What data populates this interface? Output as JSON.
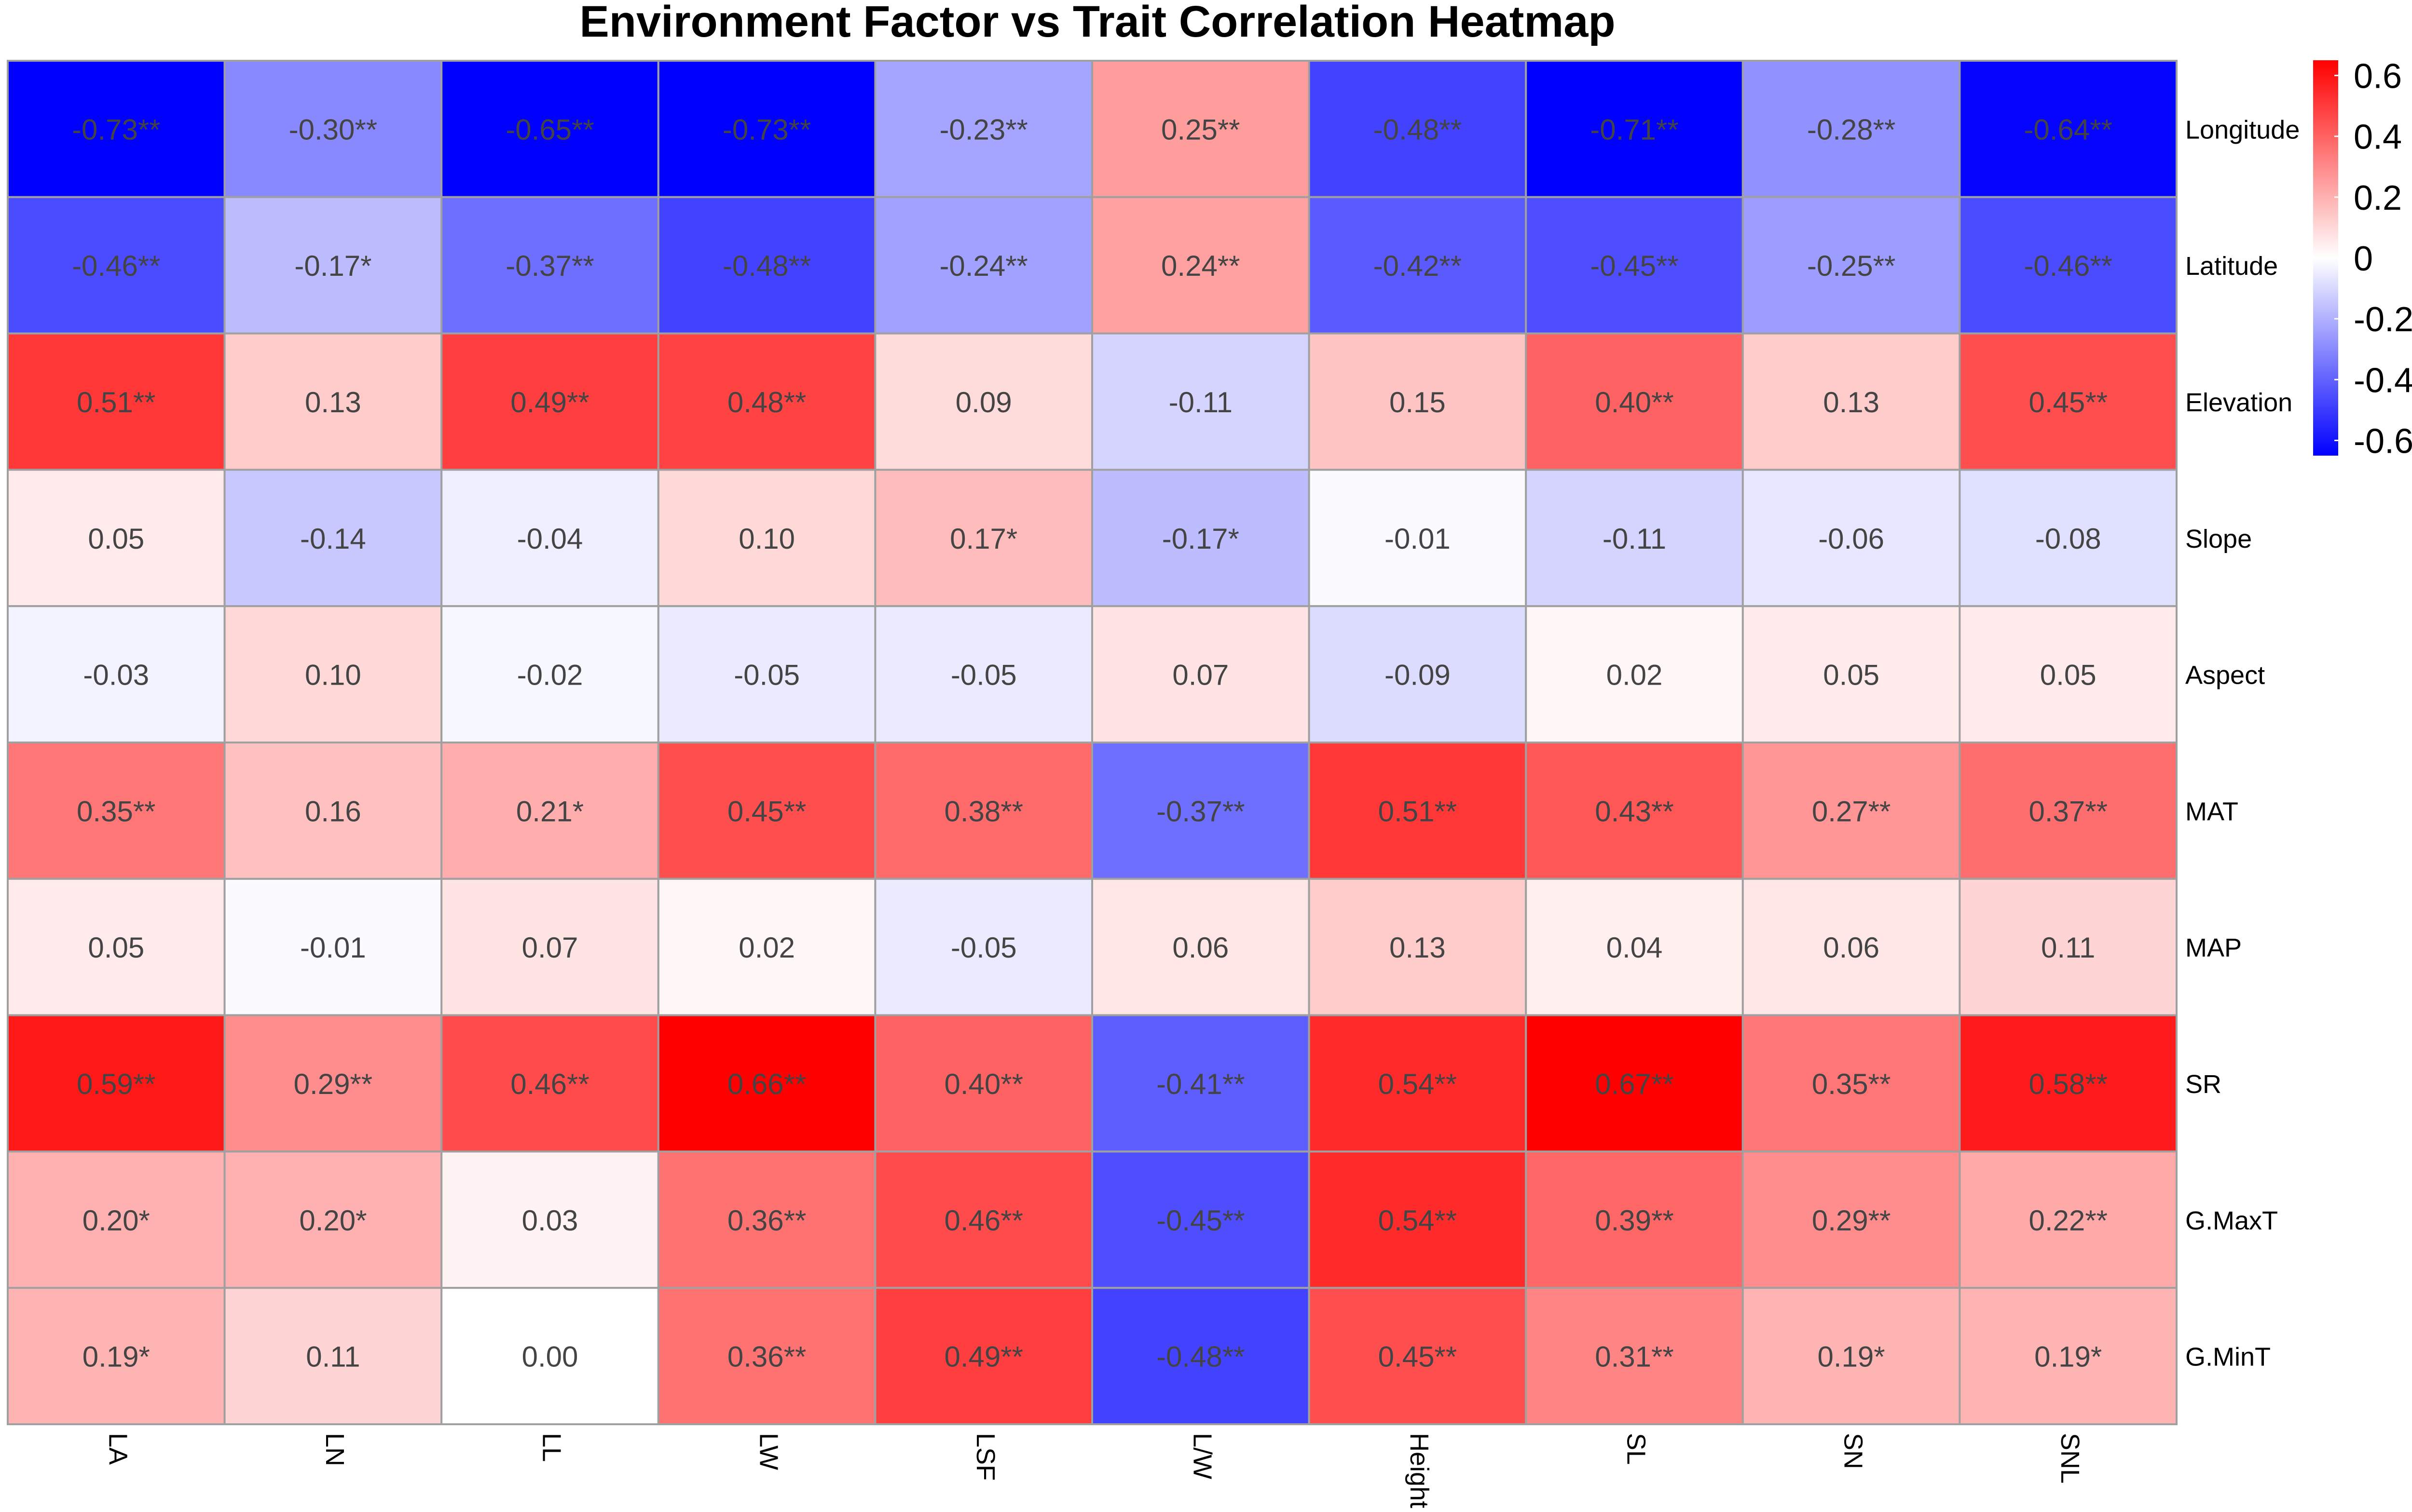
{
  "chart_data": {
    "type": "heatmap",
    "title": "Environment Factor vs Trait Correlation Heatmap",
    "columns": [
      "LA",
      "LN",
      "LL",
      "LW",
      "LSF",
      "L/W",
      "Height",
      "SL",
      "SN",
      "SNL"
    ],
    "rows": [
      "Longitude",
      "Latitude",
      "Elevation",
      "Slope",
      "Aspect",
      "MAT",
      "MAP",
      "SR",
      "G.MaxT",
      "G.MinT"
    ],
    "values": [
      [
        -0.73,
        -0.3,
        -0.65,
        -0.73,
        -0.23,
        0.25,
        -0.48,
        -0.71,
        -0.28,
        -0.64
      ],
      [
        -0.46,
        -0.17,
        -0.37,
        -0.48,
        -0.24,
        0.24,
        -0.42,
        -0.45,
        -0.25,
        -0.46
      ],
      [
        0.51,
        0.13,
        0.49,
        0.48,
        0.09,
        -0.11,
        0.15,
        0.4,
        0.13,
        0.45
      ],
      [
        0.05,
        -0.14,
        -0.04,
        0.1,
        0.17,
        -0.17,
        -0.01,
        -0.11,
        -0.06,
        -0.08
      ],
      [
        -0.03,
        0.1,
        -0.02,
        -0.05,
        -0.05,
        0.07,
        -0.09,
        0.02,
        0.05,
        0.05
      ],
      [
        0.35,
        0.16,
        0.21,
        0.45,
        0.38,
        -0.37,
        0.51,
        0.43,
        0.27,
        0.37
      ],
      [
        0.05,
        -0.01,
        0.07,
        0.02,
        -0.05,
        0.06,
        0.13,
        0.04,
        0.06,
        0.11
      ],
      [
        0.59,
        0.29,
        0.46,
        0.66,
        0.4,
        -0.41,
        0.54,
        0.67,
        0.35,
        0.58
      ],
      [
        0.2,
        0.2,
        0.03,
        0.36,
        0.46,
        -0.45,
        0.54,
        0.39,
        0.29,
        0.22
      ],
      [
        0.19,
        0.11,
        0.0,
        0.36,
        0.49,
        -0.48,
        0.45,
        0.31,
        0.19,
        0.19
      ]
    ],
    "labels": [
      [
        "-0.73**",
        "-0.30**",
        "-0.65**",
        "-0.73**",
        "-0.23**",
        "0.25**",
        "-0.48**",
        "-0.71**",
        "-0.28**",
        "-0.64**"
      ],
      [
        "-0.46**",
        "-0.17*",
        "-0.37**",
        "-0.48**",
        "-0.24**",
        "0.24**",
        "-0.42**",
        "-0.45**",
        "-0.25**",
        "-0.46**"
      ],
      [
        "0.51**",
        "0.13",
        "0.49**",
        "0.48**",
        "0.09",
        "-0.11",
        "0.15",
        "0.40**",
        "0.13",
        "0.45**"
      ],
      [
        "0.05",
        "-0.14",
        "-0.04",
        "0.10",
        "0.17*",
        "-0.17*",
        "-0.01",
        "-0.11",
        "-0.06",
        "-0.08"
      ],
      [
        "-0.03",
        "0.10",
        "-0.02",
        "-0.05",
        "-0.05",
        "0.07",
        "-0.09",
        "0.02",
        "0.05",
        "0.05"
      ],
      [
        "0.35**",
        "0.16",
        "0.21*",
        "0.45**",
        "0.38**",
        "-0.37**",
        "0.51**",
        "0.43**",
        "0.27**",
        "0.37**"
      ],
      [
        "0.05",
        "-0.01",
        "0.07",
        "0.02",
        "-0.05",
        "0.06",
        "0.13",
        "0.04",
        "0.06",
        "0.11"
      ],
      [
        "0.59**",
        "0.29**",
        "0.46**",
        "0.66**",
        "0.40**",
        "-0.41**",
        "0.54**",
        "0.67**",
        "0.35**",
        "0.58**"
      ],
      [
        "0.20*",
        "0.20*",
        "0.03",
        "0.36**",
        "0.46**",
        "-0.45**",
        "0.54**",
        "0.39**",
        "0.29**",
        "0.22**"
      ],
      [
        "0.19*",
        "0.11",
        "0.00",
        "0.36**",
        "0.49**",
        "-0.48**",
        "0.45**",
        "0.31**",
        "0.19*",
        "0.19*"
      ]
    ],
    "color_scale": {
      "min": -0.65,
      "max": 0.65,
      "low_color": "#0000FF",
      "mid_color": "#FFFFFF",
      "high_color": "#FF0000"
    },
    "legend": {
      "ticks": [
        0.6,
        0.4,
        0.2,
        0,
        -0.2,
        -0.4,
        -0.6
      ],
      "tick_labels": [
        "0.6",
        "0.4",
        "0.2",
        "0",
        "-0.2",
        "-0.4",
        "-0.6"
      ],
      "placement": "top-right"
    },
    "cell_border_color": "#A0A0A0",
    "label_color": "#444444"
  }
}
